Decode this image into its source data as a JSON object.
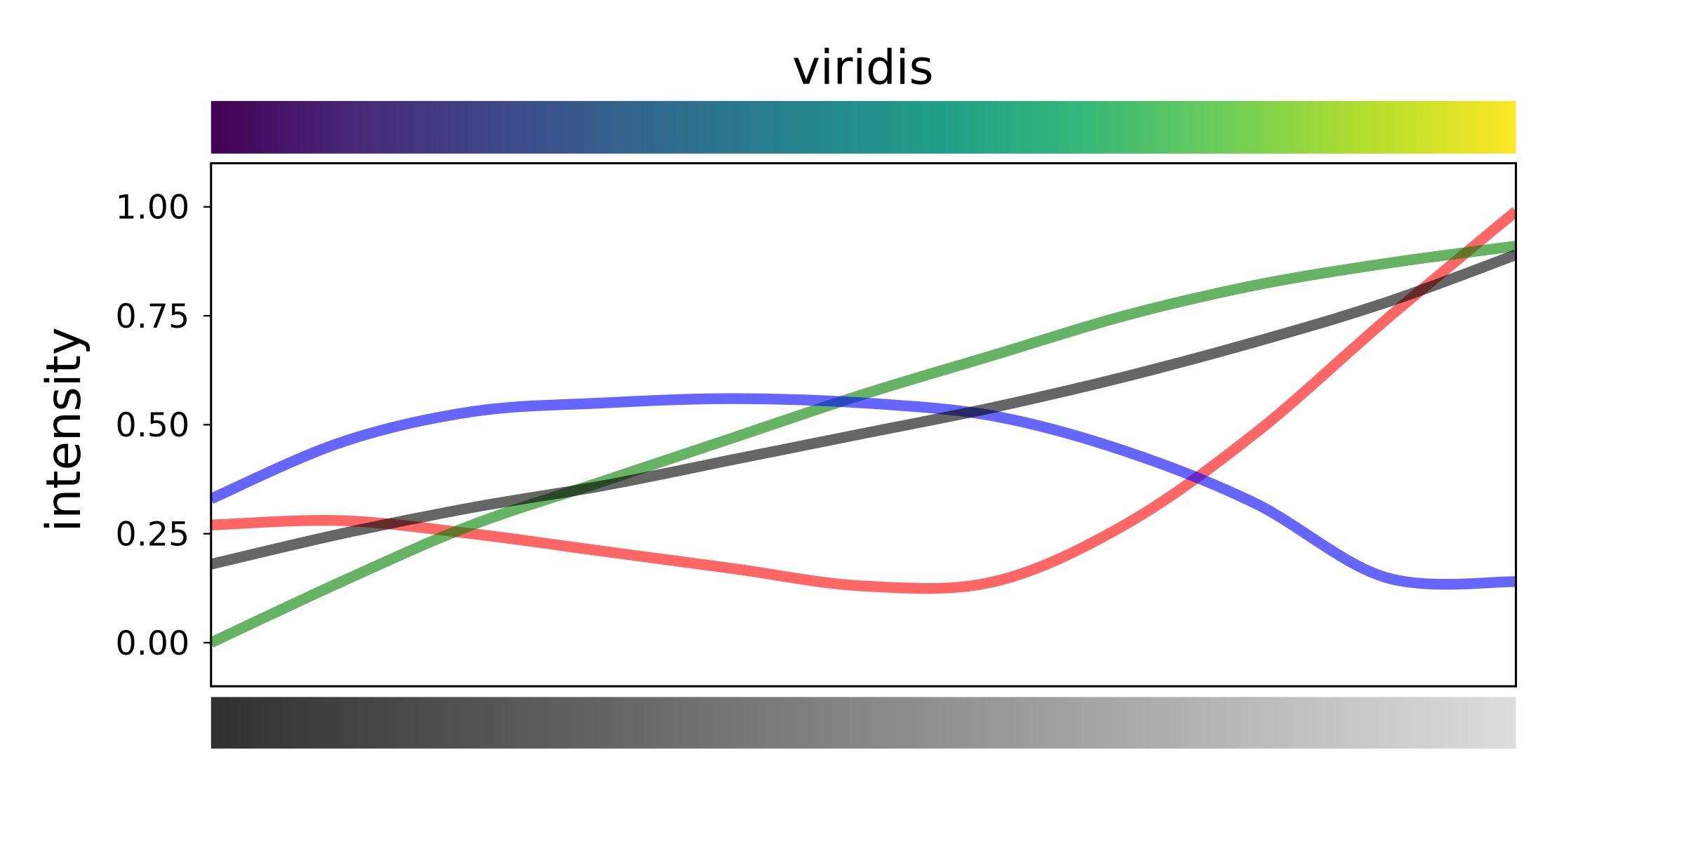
{
  "chart_data": {
    "type": "line",
    "title": "viridis",
    "xlabel": "",
    "ylabel": "intensity",
    "xlim": [
      0,
      1
    ],
    "ylim": [
      -0.1,
      1.1
    ],
    "grid": false,
    "yticks": [
      0.0,
      0.25,
      0.5,
      0.75,
      1.0
    ],
    "ytick_labels": [
      "0.00",
      "0.25",
      "0.50",
      "0.75",
      "1.00"
    ],
    "x": [
      0,
      0.1,
      0.2,
      0.3,
      0.4,
      0.5,
      0.6,
      0.7,
      0.8,
      0.9,
      1.0
    ],
    "series": [
      {
        "color": "#ff0000",
        "values": [
          0.27,
          0.28,
          0.25,
          0.21,
          0.17,
          0.13,
          0.14,
          0.27,
          0.48,
          0.74,
          0.99
        ]
      },
      {
        "color": "#008000",
        "values": [
          0.0,
          0.14,
          0.27,
          0.37,
          0.47,
          0.57,
          0.66,
          0.75,
          0.82,
          0.87,
          0.91
        ]
      },
      {
        "color": "#0000ff",
        "values": [
          0.33,
          0.46,
          0.53,
          0.55,
          0.56,
          0.55,
          0.52,
          0.44,
          0.32,
          0.15,
          0.14
        ]
      },
      {
        "color": "#000000",
        "values": [
          0.18,
          0.25,
          0.31,
          0.36,
          0.42,
          0.48,
          0.54,
          0.61,
          0.69,
          0.78,
          0.89
        ]
      }
    ],
    "series_alpha": 0.6,
    "colorbar_top": {
      "name": "viridis",
      "colors": [
        "#440154",
        "#482878",
        "#3e4989",
        "#31688e",
        "#26828e",
        "#1f9e89",
        "#35b779",
        "#6ece58",
        "#b5de2b",
        "#fde725"
      ]
    },
    "colorbar_bottom": {
      "colors": [
        "#303030",
        "#dddddd"
      ]
    }
  }
}
